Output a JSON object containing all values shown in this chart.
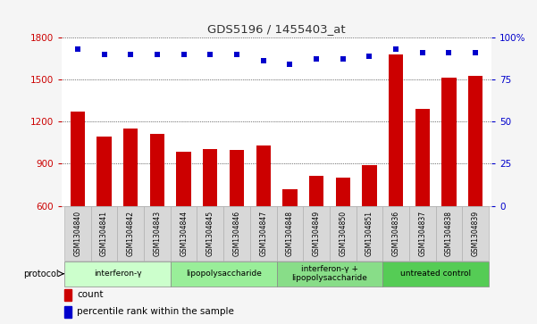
{
  "title": "GDS5196 / 1455403_at",
  "samples": [
    "GSM1304840",
    "GSM1304841",
    "GSM1304842",
    "GSM1304843",
    "GSM1304844",
    "GSM1304845",
    "GSM1304846",
    "GSM1304847",
    "GSM1304848",
    "GSM1304849",
    "GSM1304850",
    "GSM1304851",
    "GSM1304836",
    "GSM1304837",
    "GSM1304838",
    "GSM1304839"
  ],
  "counts": [
    1270,
    1095,
    1150,
    1110,
    985,
    1005,
    995,
    1030,
    720,
    810,
    800,
    890,
    1680,
    1290,
    1510,
    1525
  ],
  "percentile_ranks": [
    93,
    90,
    90,
    90,
    90,
    90,
    90,
    86,
    84,
    87,
    87,
    89,
    93,
    91,
    91,
    91
  ],
  "ylim_left": [
    600,
    1800
  ],
  "ylim_right": [
    0,
    100
  ],
  "yticks_left": [
    600,
    900,
    1200,
    1500,
    1800
  ],
  "yticks_right": [
    0,
    25,
    50,
    75,
    100
  ],
  "bar_color": "#cc0000",
  "dot_color": "#0000cc",
  "groups": [
    {
      "label": "interferon-γ",
      "start": 0,
      "end": 4,
      "color": "#ccffcc"
    },
    {
      "label": "lipopolysaccharide",
      "start": 4,
      "end": 8,
      "color": "#99ee99"
    },
    {
      "label": "interferon-γ +\nlipopolysaccharide",
      "start": 8,
      "end": 12,
      "color": "#88dd88"
    },
    {
      "label": "untreated control",
      "start": 12,
      "end": 16,
      "color": "#55cc55"
    }
  ],
  "fig_bg": "#f5f5f5",
  "plot_bg": "#ffffff",
  "sample_box_bg": "#d8d8d8",
  "tick_label_color_left": "#cc0000",
  "tick_label_color_right": "#0000cc",
  "title_color": "#333333",
  "legend_count": "count",
  "legend_pct": "percentile rank within the sample",
  "protocol_text": "protocol"
}
